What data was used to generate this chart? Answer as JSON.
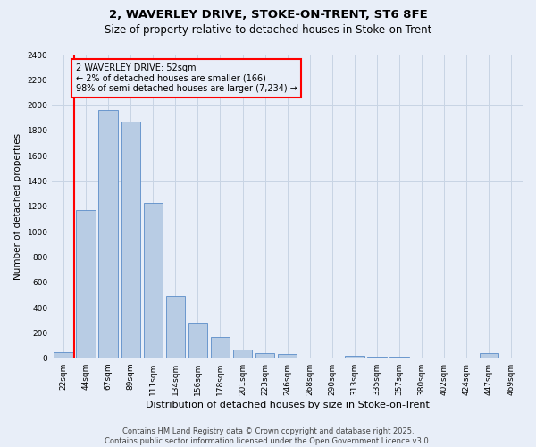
{
  "title1": "2, WAVERLEY DRIVE, STOKE-ON-TRENT, ST6 8FE",
  "title2": "Size of property relative to detached houses in Stoke-on-Trent",
  "xlabel": "Distribution of detached houses by size in Stoke-on-Trent",
  "ylabel": "Number of detached properties",
  "categories": [
    "22sqm",
    "44sqm",
    "67sqm",
    "89sqm",
    "111sqm",
    "134sqm",
    "156sqm",
    "178sqm",
    "201sqm",
    "223sqm",
    "246sqm",
    "268sqm",
    "290sqm",
    "313sqm",
    "335sqm",
    "357sqm",
    "380sqm",
    "402sqm",
    "424sqm",
    "447sqm",
    "469sqm"
  ],
  "values": [
    50,
    1170,
    1960,
    1870,
    1230,
    490,
    280,
    170,
    70,
    40,
    30,
    0,
    0,
    20,
    10,
    10,
    5,
    0,
    0,
    40,
    0
  ],
  "bar_color": "#b8cce4",
  "bar_edge_color": "#5b8dc8",
  "grid_color": "#c8d4e4",
  "background_color": "#e8eef8",
  "annotation_text_line1": "2 WAVERLEY DRIVE: 52sqm",
  "annotation_text_line2": "← 2% of detached houses are smaller (166)",
  "annotation_text_line3": "98% of semi-detached houses are larger (7,234) →",
  "annotation_box_color": "red",
  "vline_color": "red",
  "vline_x": 0.5,
  "ylim": [
    0,
    2400
  ],
  "yticks": [
    0,
    200,
    400,
    600,
    800,
    1000,
    1200,
    1400,
    1600,
    1800,
    2000,
    2200,
    2400
  ],
  "footer": "Contains HM Land Registry data © Crown copyright and database right 2025.\nContains public sector information licensed under the Open Government Licence v3.0.",
  "title1_fontsize": 9.5,
  "title2_fontsize": 8.5,
  "xlabel_fontsize": 8,
  "ylabel_fontsize": 7.5,
  "tick_fontsize": 6.5,
  "annotation_fontsize": 7,
  "footer_fontsize": 6
}
